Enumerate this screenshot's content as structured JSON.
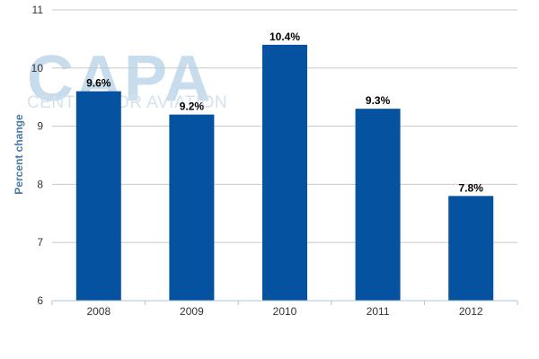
{
  "watermark": {
    "logo": "CAPA",
    "subtitle": "CENTRE FOR AVIATION"
  },
  "chart_data": {
    "type": "bar",
    "title": "",
    "xlabel": "",
    "ylabel": "Percent change",
    "categories": [
      "2008",
      "2009",
      "2010",
      "2011",
      "2012"
    ],
    "values": [
      9.6,
      9.2,
      10.4,
      9.3,
      7.8
    ],
    "data_labels": [
      "9.6%",
      "9.2%",
      "10.4%",
      "9.3%",
      "7.8%"
    ],
    "ylim": [
      6,
      11
    ],
    "yticks": [
      6,
      7,
      8,
      9,
      10,
      11
    ],
    "grid": true,
    "legend": "none",
    "colors": {
      "bar": "#0552a0",
      "grid": "#c8c8c8",
      "axis": "#b3c5d6",
      "ylabel": "#4a78a8",
      "tick_text": "#333333",
      "data_label": "#000000"
    }
  }
}
